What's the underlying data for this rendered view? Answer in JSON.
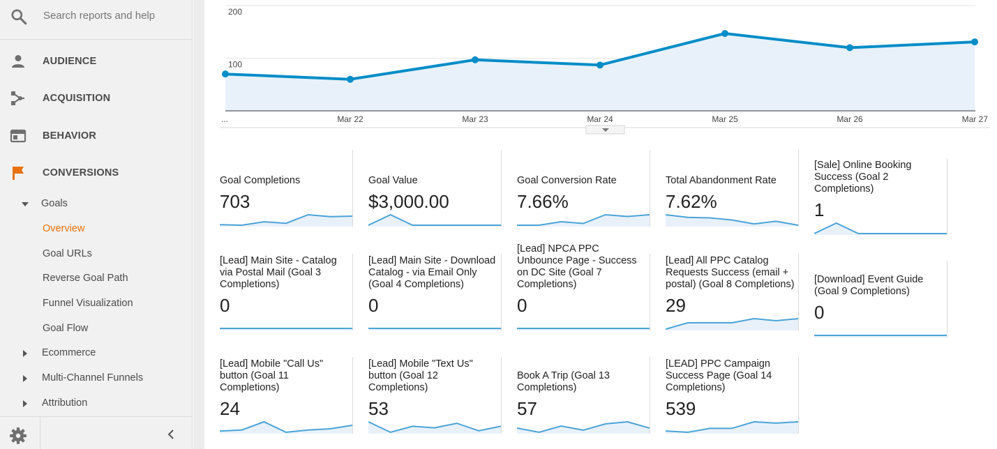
{
  "search": {
    "placeholder": "Search reports and help",
    "icon": "search-icon"
  },
  "nav": [
    {
      "label": "AUDIENCE",
      "icon": "person-icon"
    },
    {
      "label": "ACQUISITION",
      "icon": "acquisition-icon"
    },
    {
      "label": "BEHAVIOR",
      "icon": "behavior-icon"
    },
    {
      "label": "CONVERSIONS",
      "icon": "flag-icon",
      "icon_color": "#e8710a"
    }
  ],
  "conversions": {
    "goals_label": "Goals",
    "goals_items": [
      "Overview",
      "Goal URLs",
      "Reverse Goal Path",
      "Funnel Visualization",
      "Goal Flow"
    ],
    "active_item": "Overview",
    "collapsed_sections": [
      "Ecommerce",
      "Multi-Channel Funnels",
      "Attribution"
    ]
  },
  "colors": {
    "accent": "#e8710a",
    "line": "#058dc7",
    "area": "#e8f1fa",
    "spark": "#4ba3d6"
  },
  "chart_data": {
    "type": "line",
    "x": [
      "...",
      "Mar 22",
      "Mar 23",
      "Mar 24",
      "Mar 25",
      "Mar 26",
      "Mar 27"
    ],
    "values": [
      70,
      60,
      97,
      87,
      147,
      120,
      131
    ],
    "yticks": [
      100,
      200
    ],
    "ylim": [
      0,
      200
    ],
    "grid": true
  },
  "scorecards": [
    {
      "title": "Goal Completions",
      "value": "703",
      "spark": [
        3,
        2.8,
        4,
        3.5,
        6.5,
        5.8,
        6
      ]
    },
    {
      "title": "Goal Value",
      "value": "$3,000.00",
      "spark": [
        0,
        1,
        0,
        0,
        0,
        0,
        0
      ]
    },
    {
      "title": "Goal Conversion Rate",
      "value": "7.66%",
      "spark": [
        3,
        3,
        4,
        3.5,
        6,
        5.5,
        6
      ]
    },
    {
      "title": "Total Abandonment Rate",
      "value": "7.62%",
      "spark": [
        8,
        7,
        6.8,
        6,
        4.5,
        5.5,
        4
      ]
    },
    {
      "title": "[Sale] Online Booking Success (Goal 2 Completions)",
      "value": "1",
      "spark": [
        0,
        1,
        0,
        0,
        0,
        0,
        0
      ]
    },
    {
      "title": "[Lead] Main Site - Catalog via Postal Mail (Goal 3 Completions)",
      "value": "0",
      "spark": [
        0,
        0,
        0,
        0,
        0,
        0,
        0
      ]
    },
    {
      "title": "[Lead] Main Site - Download Catalog - via Email Only (Goal 4 Completions)",
      "value": "0",
      "spark": [
        0,
        0,
        0,
        0,
        0,
        0,
        0
      ]
    },
    {
      "title": "[Lead] NPCA PPC Unbounce Page - Success on DC Site (Goal 7 Completions)",
      "value": "0",
      "spark": [
        0,
        0,
        0,
        0,
        0,
        0,
        0
      ]
    },
    {
      "title": "[Lead] All PPC Catalog Requests Success (email + postal) (Goal 8 Completions)",
      "value": "29",
      "spark": [
        1,
        4,
        4,
        4,
        6,
        5,
        6
      ]
    },
    {
      "title": "[Download] Event Guide (Goal 9 Completions)",
      "value": "0",
      "spark": [
        0,
        0,
        0,
        0,
        0,
        0,
        0
      ]
    },
    {
      "title": "[Lead] Mobile \"Call Us\" button (Goal 11 Completions)",
      "value": "24",
      "spark": [
        1,
        1.5,
        5,
        0.5,
        1.5,
        2,
        3.5
      ]
    },
    {
      "title": "[Lead] Mobile \"Text Us\" button (Goal 12 Completions)",
      "value": "53",
      "spark": [
        6,
        2.5,
        4.5,
        4,
        5.5,
        3,
        4.5
      ]
    },
    {
      "title": "Book A Trip (Goal 13 Completions)",
      "value": "57",
      "spark": [
        3.5,
        2.5,
        4,
        3,
        4.5,
        5,
        3.5
      ]
    },
    {
      "title": "[LEAD] PPC Campaign Success Page (Goal 14 Completions)",
      "value": "539",
      "spark": [
        2,
        1.5,
        3,
        3,
        5.5,
        5,
        5.5
      ]
    }
  ]
}
